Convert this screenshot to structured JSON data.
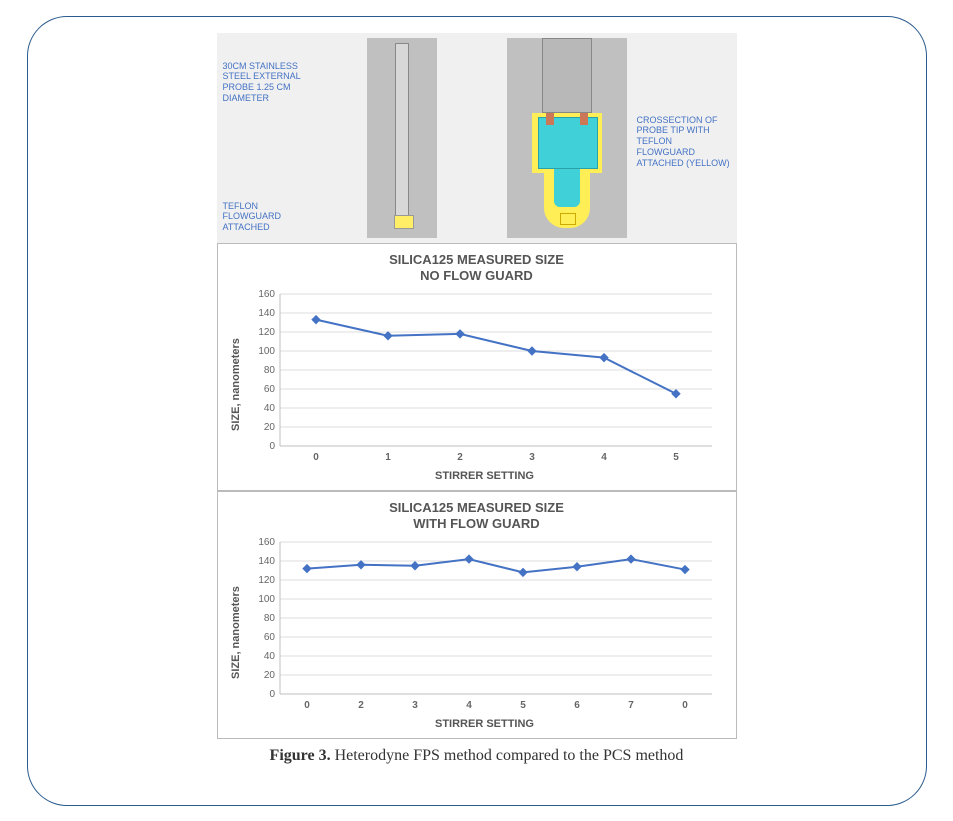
{
  "colors": {
    "frame_border": "#2a5b8e",
    "panel_bg": "#f0f0f0",
    "label_text": "#4472c4",
    "chart_border": "#bbbbbb",
    "title_text": "#555555",
    "series_line": "#4472c4",
    "series_marker": "#4472c4",
    "gridline": "#dddddd",
    "axis_line": "#bfbfbf",
    "tick_text": "#666666"
  },
  "diagram": {
    "label_left_top": "30CM STAINLESS STEEL EXTERNAL PROBE 1.25 CM DIAMETER",
    "label_left_bottom": "TEFLON FLOWGUARD ATTACHED",
    "label_right": "CROSSECTION OF PROBE TIP WITH TEFLON FLOWGUARD ATTACHED (YELLOW)"
  },
  "chart1": {
    "type": "line",
    "title_line1": "SILICA125 MEASURED SIZE",
    "title_line2": "NO FLOW GUARD",
    "x_label": "STIRRER SETTING",
    "y_label": "SIZE, nanometers",
    "x_categories": [
      "0",
      "1",
      "2",
      "3",
      "4",
      "5"
    ],
    "y_ticks": [
      0,
      20,
      40,
      60,
      80,
      100,
      120,
      140,
      160
    ],
    "ylim": [
      0,
      160
    ],
    "values": [
      133,
      116,
      118,
      100,
      93,
      55
    ],
    "title_fontsize": 13,
    "label_fontsize": 11,
    "tick_fontsize": 10,
    "line_width": 2,
    "marker_size": 4,
    "background": "#ffffff",
    "grid_color": "#dddddd"
  },
  "chart2": {
    "type": "line",
    "title_line1": "SILICA125 MEASURED SIZE",
    "title_line2": "WITH FLOW GUARD",
    "x_label": "STIRRER SETTING",
    "y_label": "SIZE, nanometers",
    "x_categories": [
      "0",
      "2",
      "3",
      "4",
      "5",
      "6",
      "7",
      "0"
    ],
    "y_ticks": [
      0,
      20,
      40,
      60,
      80,
      100,
      120,
      140,
      160
    ],
    "ylim": [
      0,
      160
    ],
    "values": [
      132,
      136,
      135,
      142,
      128,
      134,
      142,
      131
    ],
    "title_fontsize": 13,
    "label_fontsize": 11,
    "tick_fontsize": 10,
    "line_width": 2,
    "marker_size": 4,
    "background": "#ffffff",
    "grid_color": "#dddddd"
  },
  "caption": {
    "prefix": "Figure 3.",
    "text": " Heterodyne FPS method compared to the PCS method"
  }
}
